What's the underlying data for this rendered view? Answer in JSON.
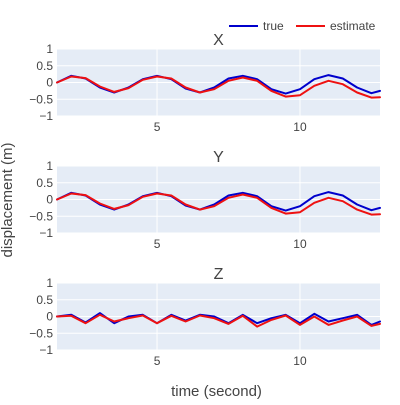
{
  "chart_data": {
    "type": "line",
    "xlabel": "time (second)",
    "ylabel": "displacement (m)",
    "xlim": [
      1.5,
      12.8
    ],
    "ylim": [
      -1,
      1
    ],
    "xticks": [
      5,
      10
    ],
    "xtick_labels": [
      "5",
      "10"
    ],
    "yticks": [
      1,
      0.5,
      0,
      -0.5,
      -1
    ],
    "ytick_labels": [
      "1",
      "0.5",
      "0",
      "−0.5",
      "−1"
    ],
    "grid": true,
    "legend": {
      "placement": "top-right",
      "entries": [
        "true",
        "estimate"
      ]
    },
    "colors": {
      "true": "#0000cc",
      "estimate": "#ee1111",
      "plot_bg": "#e5ecf6",
      "grid": "#ffffff"
    },
    "x": [
      1.5,
      2.0,
      2.5,
      3.0,
      3.5,
      4.0,
      4.5,
      5.0,
      5.5,
      6.0,
      6.5,
      7.0,
      7.5,
      8.0,
      8.5,
      9.0,
      9.5,
      10.0,
      10.5,
      11.0,
      11.5,
      12.0,
      12.5,
      12.8
    ],
    "panels": [
      {
        "title": "X",
        "series": [
          {
            "name": "true",
            "values": [
              0.0,
              0.2,
              0.12,
              -0.15,
              -0.3,
              -0.15,
              0.1,
              0.2,
              0.1,
              -0.18,
              -0.3,
              -0.15,
              0.12,
              0.2,
              0.1,
              -0.2,
              -0.33,
              -0.2,
              0.1,
              0.22,
              0.12,
              -0.15,
              -0.32,
              -0.25
            ]
          },
          {
            "name": "estimate",
            "values": [
              0.0,
              0.18,
              0.13,
              -0.12,
              -0.28,
              -0.17,
              0.08,
              0.18,
              0.12,
              -0.15,
              -0.3,
              -0.2,
              0.05,
              0.15,
              0.05,
              -0.25,
              -0.42,
              -0.38,
              -0.1,
              0.05,
              -0.05,
              -0.3,
              -0.45,
              -0.44
            ]
          }
        ]
      },
      {
        "title": "Y",
        "series": [
          {
            "name": "true",
            "values": [
              0.0,
              0.2,
              0.12,
              -0.15,
              -0.3,
              -0.15,
              0.1,
              0.2,
              0.1,
              -0.18,
              -0.3,
              -0.15,
              0.12,
              0.2,
              0.1,
              -0.2,
              -0.33,
              -0.2,
              0.1,
              0.22,
              0.12,
              -0.15,
              -0.32,
              -0.25
            ]
          },
          {
            "name": "estimate",
            "values": [
              0.0,
              0.18,
              0.13,
              -0.12,
              -0.28,
              -0.17,
              0.08,
              0.18,
              0.12,
              -0.15,
              -0.3,
              -0.2,
              0.05,
              0.15,
              0.05,
              -0.25,
              -0.42,
              -0.38,
              -0.1,
              0.05,
              -0.05,
              -0.3,
              -0.45,
              -0.44
            ]
          }
        ]
      },
      {
        "title": "Z",
        "series": [
          {
            "name": "true",
            "values": [
              0.0,
              0.05,
              -0.18,
              0.1,
              -0.2,
              0.0,
              0.05,
              -0.2,
              0.05,
              -0.12,
              0.05,
              0.0,
              -0.2,
              0.05,
              -0.2,
              -0.05,
              0.05,
              -0.2,
              0.08,
              -0.15,
              -0.05,
              0.05,
              -0.25,
              -0.15
            ]
          },
          {
            "name": "estimate",
            "values": [
              0.0,
              0.02,
              -0.2,
              0.05,
              -0.15,
              -0.05,
              0.03,
              -0.2,
              0.02,
              -0.15,
              0.03,
              -0.05,
              -0.22,
              0.02,
              -0.3,
              -0.1,
              0.03,
              -0.25,
              0.0,
              -0.25,
              -0.12,
              0.0,
              -0.28,
              -0.22
            ]
          }
        ]
      }
    ]
  }
}
